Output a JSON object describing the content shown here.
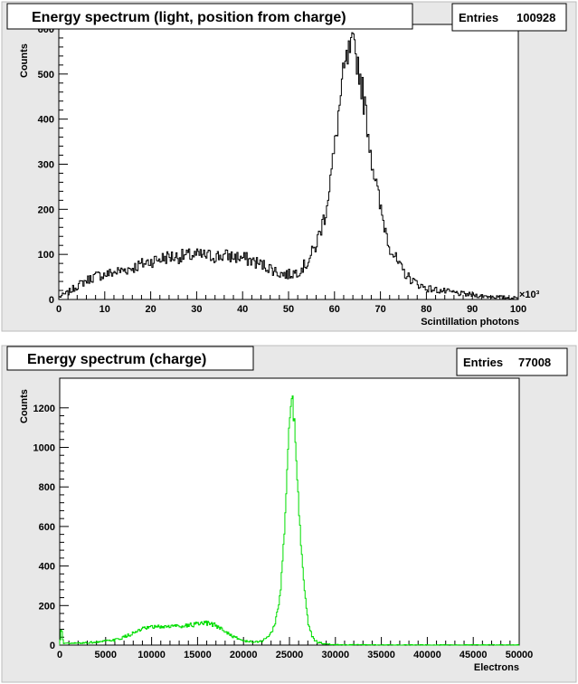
{
  "chart_data": [
    {
      "type": "histogram",
      "title": "Energy spectrum (light, position from charge)",
      "stats": {
        "label": "Entries",
        "value": "100928"
      },
      "xlabel": "Scintillation photons",
      "ylabel": "Counts",
      "x_multiplier_label": "×10³",
      "xlim": [
        0,
        100
      ],
      "ylim": [
        0,
        610
      ],
      "x_ticks": [
        0,
        10,
        20,
        30,
        40,
        50,
        60,
        70,
        80,
        90,
        100
      ],
      "y_ticks": [
        0,
        100,
        200,
        300,
        400,
        500,
        600
      ],
      "line_color": "#000000",
      "panel_background": "#e8e8e8",
      "profile": {
        "x": [
          0,
          2,
          4,
          6,
          8,
          10,
          12,
          14,
          16,
          18,
          20,
          22,
          24,
          26,
          28,
          30,
          32,
          34,
          36,
          38,
          40,
          42,
          44,
          46,
          48,
          50,
          52,
          54,
          56,
          58,
          60,
          61,
          62,
          63,
          64,
          65,
          66,
          67,
          68,
          70,
          72,
          74,
          76,
          78,
          80,
          84,
          88,
          92,
          96,
          100
        ],
        "y": [
          5,
          15,
          30,
          42,
          52,
          55,
          60,
          65,
          70,
          78,
          85,
          90,
          95,
          95,
          97,
          98,
          97,
          96,
          97,
          95,
          92,
          86,
          78,
          70,
          58,
          55,
          62,
          80,
          120,
          190,
          330,
          420,
          500,
          540,
          560,
          530,
          470,
          400,
          320,
          200,
          120,
          75,
          50,
          35,
          25,
          18,
          12,
          8,
          5,
          3
        ]
      }
    },
    {
      "type": "histogram",
      "title": "Energy spectrum (charge)",
      "stats": {
        "label": "Entries",
        "value": "77008"
      },
      "xlabel": "Electrons",
      "ylabel": "Counts",
      "xlim": [
        0,
        50000
      ],
      "ylim": [
        0,
        1350
      ],
      "x_ticks": [
        0,
        5000,
        10000,
        15000,
        20000,
        25000,
        30000,
        35000,
        40000,
        45000,
        50000
      ],
      "y_ticks": [
        0,
        200,
        400,
        600,
        800,
        1000,
        1200
      ],
      "line_color": "#00dd00",
      "panel_background": "#e8e8e8",
      "profile": {
        "x": [
          0,
          200,
          400,
          1000,
          2000,
          4000,
          6000,
          7000,
          8000,
          9000,
          10000,
          12000,
          14000,
          15000,
          16000,
          17000,
          18000,
          19000,
          20000,
          21000,
          22000,
          22500,
          23000,
          23500,
          24000,
          24500,
          25000,
          25300,
          25600,
          26000,
          26500,
          27000,
          27500,
          28000,
          29000,
          30000,
          35000,
          40000,
          45000,
          50000
        ],
        "y": [
          5,
          90,
          10,
          8,
          10,
          15,
          25,
          40,
          60,
          80,
          90,
          95,
          100,
          105,
          110,
          100,
          70,
          40,
          22,
          15,
          20,
          35,
          60,
          120,
          250,
          600,
          1150,
          1250,
          1100,
          700,
          350,
          120,
          40,
          15,
          5,
          2,
          1,
          1,
          1,
          1
        ]
      }
    }
  ]
}
